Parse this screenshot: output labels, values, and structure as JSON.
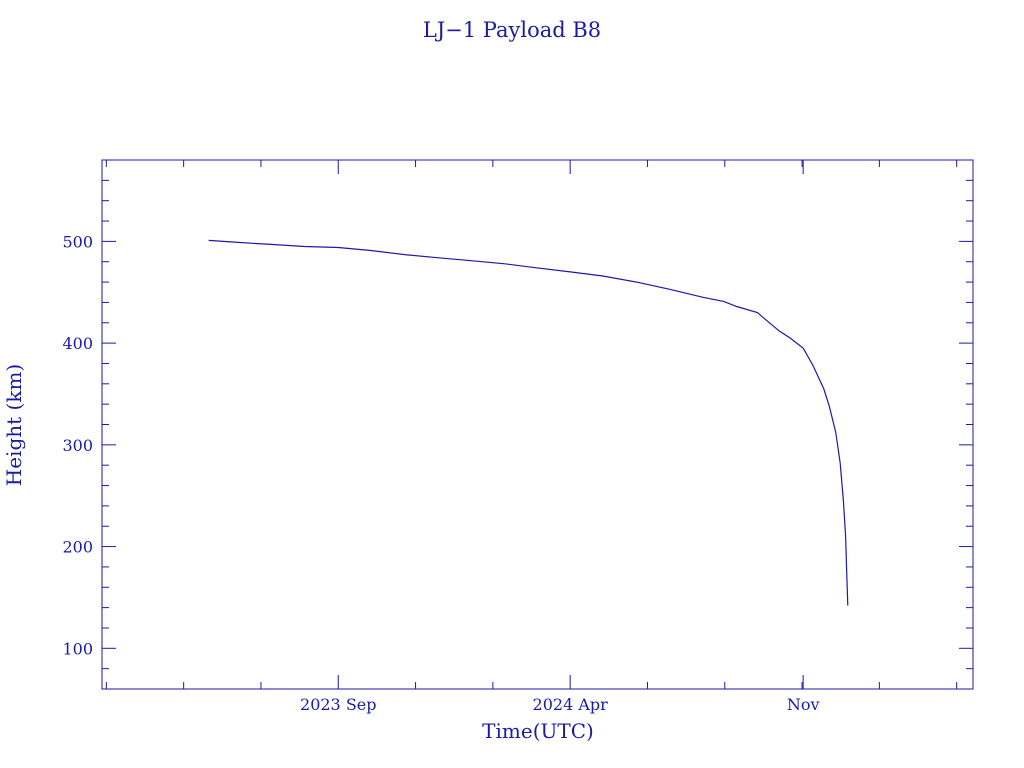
{
  "chart_data": {
    "type": "line",
    "title": "LJ−1 Payload B8",
    "xlabel": "Time(UTC)",
    "ylabel": "Height (km)",
    "color": "#1a1aa6",
    "xlim": [
      "2023-01-27",
      "2025-04-06"
    ],
    "ylim": [
      60,
      580
    ],
    "x_ticks": [
      {
        "date": "2023-09-01",
        "label": "2023 Sep"
      },
      {
        "date": "2024-04-01",
        "label": "2024 Apr"
      },
      {
        "date": "2024-11-01",
        "label": "Nov"
      }
    ],
    "y_ticks": [
      100,
      200,
      300,
      400,
      500
    ],
    "grid": false,
    "series": [
      {
        "x": [
          "2023-05-05",
          "2023-06-01",
          "2023-07-01",
          "2023-08-01",
          "2023-09-01",
          "2023-10-01",
          "2023-11-01",
          "2023-12-01",
          "2024-01-01",
          "2024-02-01",
          "2024-03-01",
          "2024-04-01",
          "2024-05-01",
          "2024-06-01",
          "2024-07-01",
          "2024-08-01",
          "2024-08-20",
          "2024-09-01",
          "2024-09-20",
          "2024-10-01",
          "2024-10-10",
          "2024-10-20",
          "2024-11-01",
          "2024-11-10",
          "2024-11-20",
          "2024-11-25",
          "2024-12-01",
          "2024-12-05",
          "2024-12-08",
          "2024-12-10",
          "2024-12-11",
          "2024-12-12"
        ],
        "y": [
          501,
          499,
          497,
          495,
          494,
          491,
          487,
          484,
          481,
          478,
          474,
          470,
          466,
          460,
          453,
          445,
          441,
          436,
          430,
          420,
          412,
          405,
          395,
          378,
          355,
          338,
          312,
          282,
          245,
          210,
          175,
          142
        ]
      }
    ]
  }
}
